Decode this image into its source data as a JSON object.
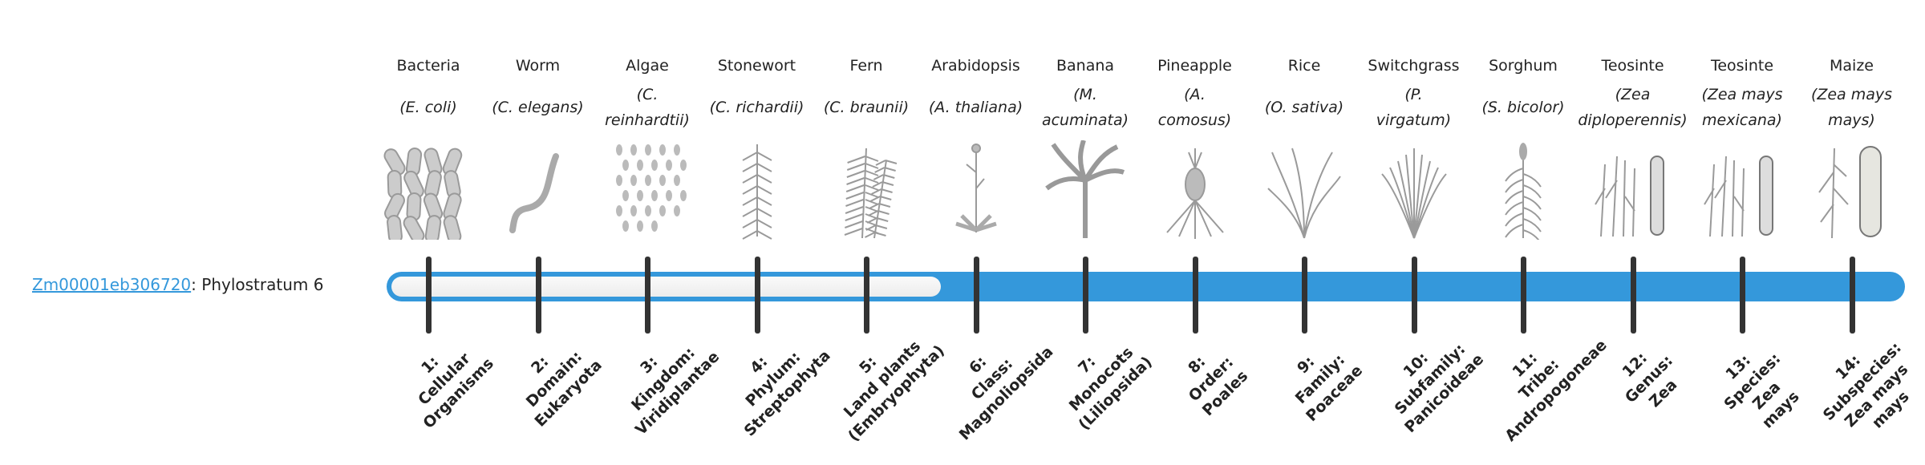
{
  "gene": {
    "id": "Zm00001eb306720",
    "suffix": ": Phylostratum 6"
  },
  "bar": {
    "phylostratum": 6,
    "total": 14,
    "fill_color": "#3498db",
    "empty_color": "#f2f2f2"
  },
  "organisms": [
    {
      "name": "Bacteria",
      "species": [
        "(E. coli)"
      ],
      "icon": "bacteria-icon"
    },
    {
      "name": "Worm",
      "species": [
        "(C. elegans)"
      ],
      "icon": "worm-icon"
    },
    {
      "name": "Algae",
      "species": [
        "(C.",
        "reinhardtii)"
      ],
      "icon": "algae-icon"
    },
    {
      "name": "Stonewort",
      "species": [
        "(C. richardii)"
      ],
      "icon": "stonewort-icon"
    },
    {
      "name": "Fern",
      "species": [
        "(C. braunii)"
      ],
      "icon": "fern-icon"
    },
    {
      "name": "Arabidopsis",
      "species": [
        "(A. thaliana)"
      ],
      "icon": "arabidopsis-icon"
    },
    {
      "name": "Banana",
      "species": [
        "(M.",
        "acuminata)"
      ],
      "icon": "banana-icon"
    },
    {
      "name": "Pineapple",
      "species": [
        "(A.",
        "comosus)"
      ],
      "icon": "pineapple-icon"
    },
    {
      "name": "Rice",
      "species": [
        "(O. sativa)"
      ],
      "icon": "rice-icon"
    },
    {
      "name": "Switchgrass",
      "species": [
        "(P.",
        "virgatum)"
      ],
      "icon": "switchgrass-icon"
    },
    {
      "name": "Sorghum",
      "species": [
        "(S. bicolor)"
      ],
      "icon": "sorghum-icon"
    },
    {
      "name": "Teosinte",
      "species": [
        "(Zea",
        "diploperennis)"
      ],
      "icon": "teosinte-icon"
    },
    {
      "name": "Teosinte",
      "species": [
        "(Zea mays",
        "mexicana)"
      ],
      "icon": "teosinte-icon"
    },
    {
      "name": "Maize",
      "species": [
        "(Zea mays",
        "mays)"
      ],
      "icon": "maize-icon"
    }
  ],
  "strata": [
    [
      "1:",
      "Cellular",
      "Organisms"
    ],
    [
      "2:",
      "Domain:",
      "Eukaryota"
    ],
    [
      "3:",
      "Kingdom:",
      "Viridiplantae"
    ],
    [
      "4:",
      "Phylum:",
      "Streptophyta"
    ],
    [
      "5:",
      "Land plants",
      "(Embryophyta)"
    ],
    [
      "6:",
      "Class:",
      "Magnoliopsida"
    ],
    [
      "7:",
      "Monocots",
      "(Liliopsida)"
    ],
    [
      "8:",
      "Order:",
      "Poales"
    ],
    [
      "9:",
      "Family:",
      "Poaceae"
    ],
    [
      "10:",
      "Subfamily:",
      "Panicoideae"
    ],
    [
      "11:",
      "Tribe:",
      "Andropogoneae"
    ],
    [
      "12:",
      "Genus:",
      "Zea"
    ],
    [
      "13:",
      "Species:",
      "Zea",
      "mays"
    ],
    [
      "14:",
      "Subspecies:",
      "Zea mays",
      "mays"
    ]
  ]
}
